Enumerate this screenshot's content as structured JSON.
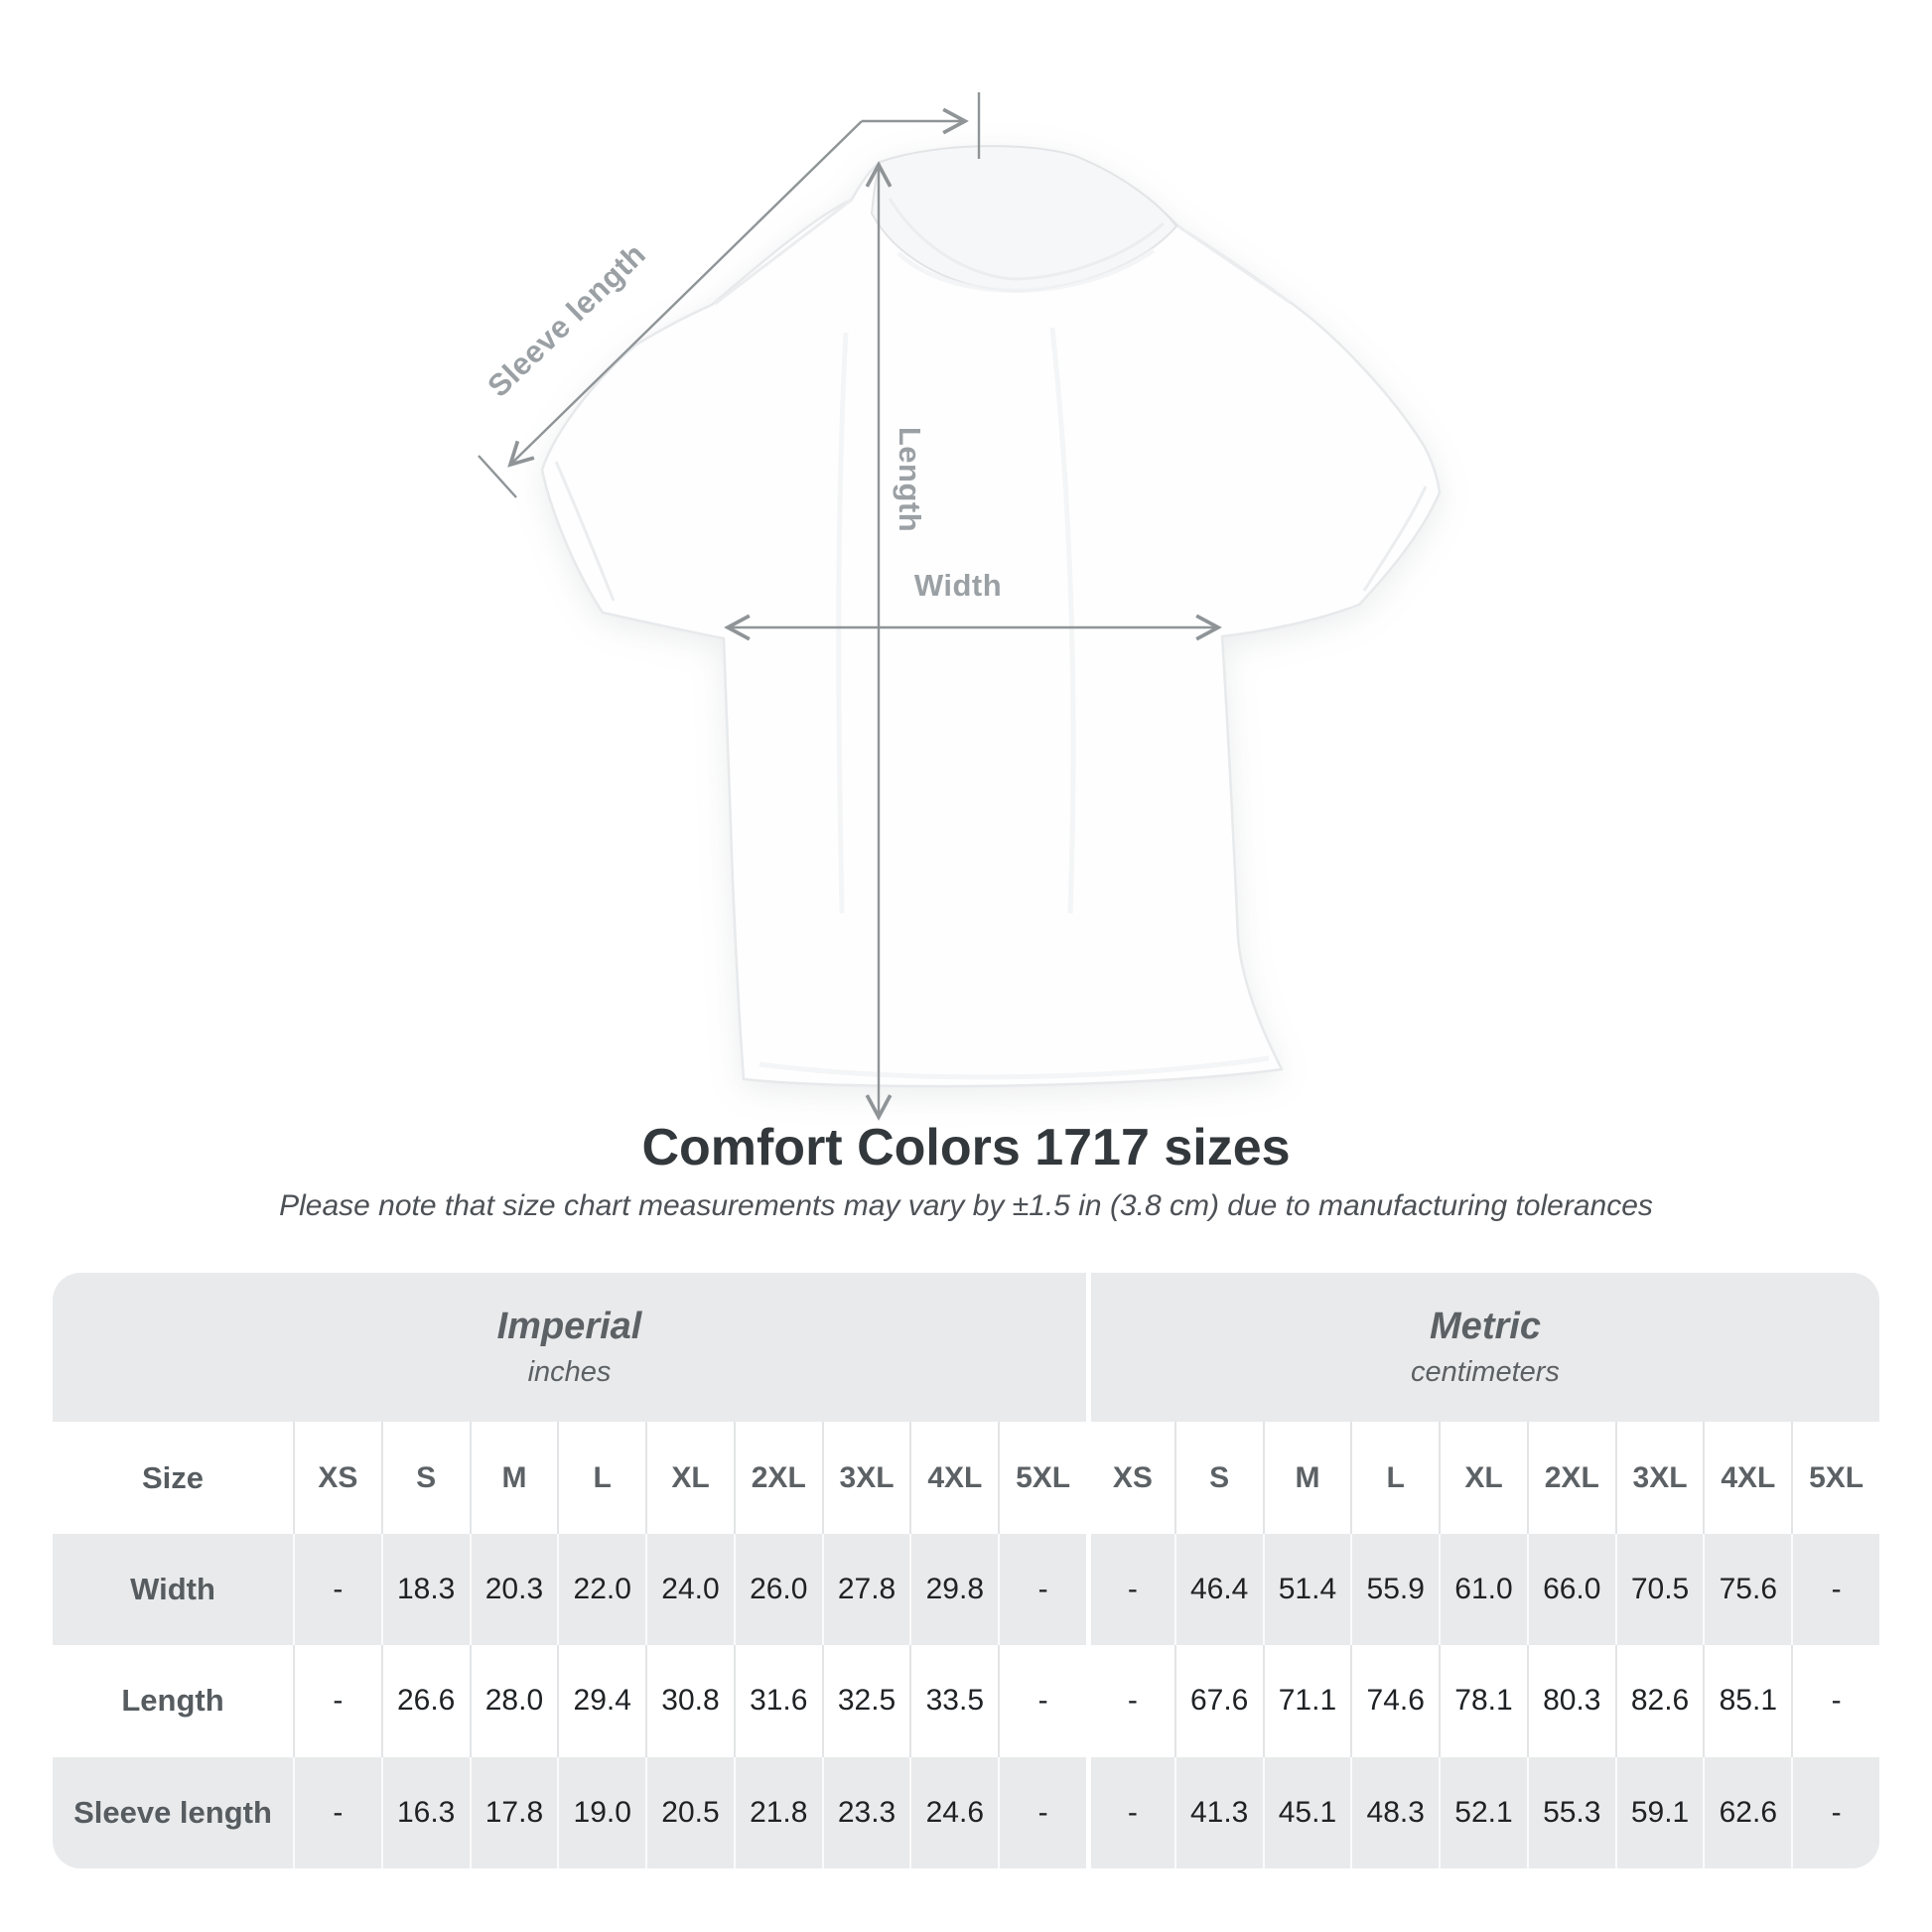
{
  "shirt_diagram": {
    "labels": {
      "sleeve_length": "Sleeve length",
      "length": "Length",
      "width": "Width"
    }
  },
  "heading": {
    "title": "Comfort Colors 1717 sizes",
    "subtitle": "Please note that size chart measurements may vary by ±1.5 in (3.8 cm) due to manufacturing tolerances"
  },
  "chart_data": {
    "type": "table",
    "title": "Comfort Colors 1717 sizes",
    "groups": [
      {
        "label": "Imperial",
        "unit": "inches"
      },
      {
        "label": "Metric",
        "unit": "centimeters"
      }
    ],
    "size_header": "Size",
    "sizes": [
      "XS",
      "S",
      "M",
      "L",
      "XL",
      "2XL",
      "3XL",
      "4XL",
      "5XL"
    ],
    "rows": [
      {
        "label": "Width",
        "imperial": [
          "-",
          "18.3",
          "20.3",
          "22.0",
          "24.0",
          "26.0",
          "27.8",
          "29.8",
          "-"
        ],
        "metric": [
          "-",
          "46.4",
          "51.4",
          "55.9",
          "61.0",
          "66.0",
          "70.5",
          "75.6",
          "-"
        ]
      },
      {
        "label": "Length",
        "imperial": [
          "-",
          "26.6",
          "28.0",
          "29.4",
          "30.8",
          "31.6",
          "32.5",
          "33.5",
          "-"
        ],
        "metric": [
          "-",
          "67.6",
          "71.1",
          "74.6",
          "78.1",
          "80.3",
          "82.6",
          "85.1",
          "-"
        ]
      },
      {
        "label": "Sleeve length",
        "imperial": [
          "-",
          "16.3",
          "17.8",
          "19.0",
          "20.5",
          "21.8",
          "23.3",
          "24.6",
          "-"
        ],
        "metric": [
          "-",
          "41.3",
          "45.1",
          "48.3",
          "52.1",
          "55.3",
          "59.1",
          "62.6",
          "-"
        ]
      }
    ]
  },
  "colors": {
    "table_stripe": "#e9eaeb",
    "measure_line": "#8f9497",
    "measure_label": "#9aa0a4",
    "title_text": "#33383c",
    "header_text": "#5c6165",
    "value_text": "#1f2225"
  }
}
